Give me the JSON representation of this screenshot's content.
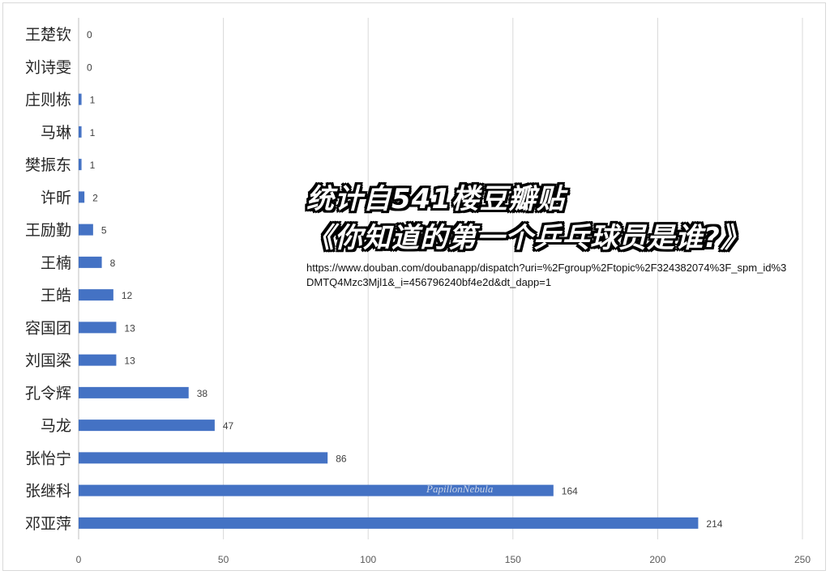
{
  "chart_data": {
    "type": "bar",
    "orientation": "horizontal",
    "categories": [
      "王楚钦",
      "刘诗雯",
      "庄则栋",
      "马琳",
      "樊振东",
      "许昕",
      "王励勤",
      "王楠",
      "王皓",
      "容国团",
      "刘国梁",
      "孔令辉",
      "马龙",
      "张怡宁",
      "张继科",
      "邓亚萍"
    ],
    "values": [
      0,
      0,
      1,
      1,
      1,
      2,
      5,
      8,
      12,
      13,
      13,
      38,
      47,
      86,
      164,
      214
    ],
    "xlim": [
      0,
      250
    ],
    "xticks": [
      0,
      50,
      100,
      150,
      200,
      250
    ],
    "grid": "vertical",
    "bar_color": "#4472c4",
    "data_labels": true
  },
  "overlay": {
    "title_line1": "统计自541楼豆瓣贴",
    "title_line2": "《你知道的第一个乒乓球员是谁?》",
    "source_url": "https://www.douban.com/doubanapp/dispatch?uri=%2Fgroup%2Ftopic%2F324382074%3F_spm_id%3DMTQ4Mzc3Mjl1&_i=456796240bf4e2d&dt_dapp=1",
    "watermark": "PapillonNebula"
  }
}
